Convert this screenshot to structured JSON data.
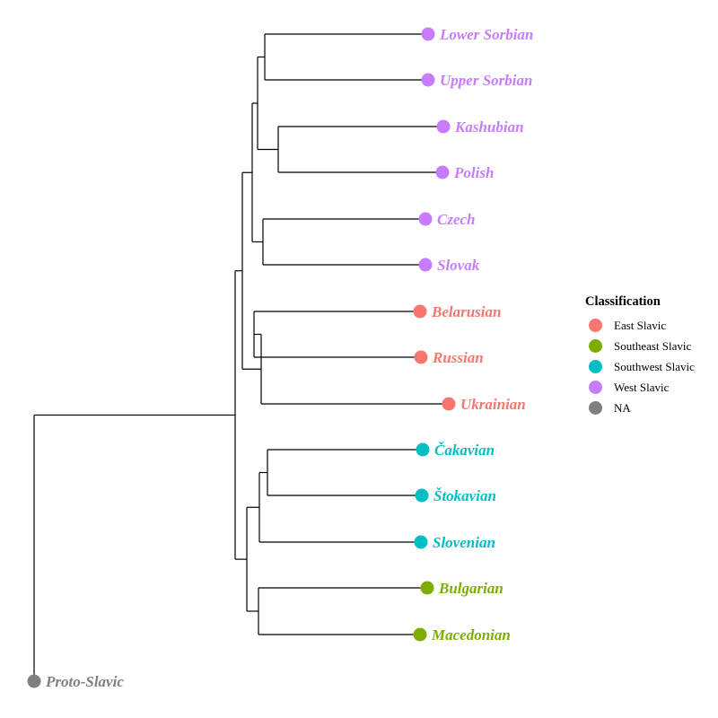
{
  "colors": {
    "East Slavic": "#F8766D",
    "Southeast Slavic": "#7CAE00",
    "Southwest Slavic": "#00BFC4",
    "West Slavic": "#C77CFF",
    "NA": "#7F7F7F"
  },
  "tree": {
    "name": "",
    "children": [
      {
        "name": "Proto-Slavic",
        "group": "NA"
      },
      {
        "name": "",
        "children": [
          {
            "name": "",
            "children": [
              {
                "name": "",
                "children": [
                  {
                    "name": "",
                    "children": [
                      {
                        "name": "",
                        "children": [
                          {
                            "name": "Lower Sorbian",
                            "group": "West Slavic"
                          },
                          {
                            "name": "Upper Sorbian",
                            "group": "West Slavic"
                          }
                        ]
                      },
                      {
                        "name": "",
                        "children": [
                          {
                            "name": "Kashubian",
                            "group": "West Slavic"
                          },
                          {
                            "name": "Polish",
                            "group": "West Slavic"
                          }
                        ]
                      }
                    ]
                  },
                  {
                    "name": "",
                    "children": [
                      {
                        "name": "Czech",
                        "group": "West Slavic"
                      },
                      {
                        "name": "Slovak",
                        "group": "West Slavic"
                      }
                    ]
                  }
                ]
              },
              {
                "name": "",
                "children": [
                  {
                    "name": "",
                    "children": [
                      {
                        "name": "Belarusian",
                        "group": "East Slavic"
                      },
                      {
                        "name": "Russian",
                        "group": "East Slavic"
                      }
                    ]
                  },
                  {
                    "name": "Ukrainian",
                    "group": "East Slavic"
                  }
                ]
              }
            ]
          },
          {
            "name": "",
            "children": [
              {
                "name": "",
                "children": [
                  {
                    "name": "",
                    "children": [
                      {
                        "name": "Čakavian",
                        "group": "Southwest Slavic"
                      },
                      {
                        "name": "Štokavian",
                        "group": "Southwest Slavic"
                      }
                    ]
                  },
                  {
                    "name": "Slovenian",
                    "group": "Southwest Slavic"
                  }
                ]
              },
              {
                "name": "",
                "children": [
                  {
                    "name": "Bulgarian",
                    "group": "Southeast Slavic"
                  },
                  {
                    "name": "Macedonian",
                    "group": "Southeast Slavic"
                  }
                ]
              }
            ]
          }
        ]
      }
    ]
  },
  "legend": {
    "title": "Classification",
    "items": [
      {
        "label": "East Slavic",
        "color": "#F8766D"
      },
      {
        "label": "Southeast Slavic",
        "color": "#7CAE00"
      },
      {
        "label": "Southwest Slavic",
        "color": "#00BFC4"
      },
      {
        "label": "West Slavic",
        "color": "#C77CFF"
      },
      {
        "label": "NA",
        "color": "#7F7F7F"
      }
    ]
  }
}
